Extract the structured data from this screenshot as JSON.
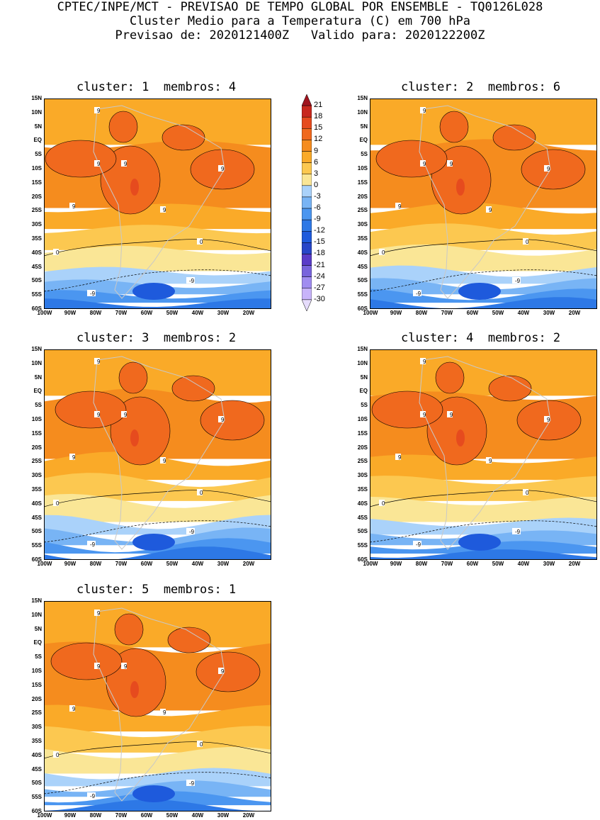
{
  "header": {
    "line1": "CPTEC/INPE/MCT - PREVISAO DE TEMPO GLOBAL POR ENSEMBLE - TQ0126L028",
    "line2": "Cluster Medio para a Temperatura (C) em 700 hPa",
    "line3": "Previsao de: 2020121400Z   Valido para: 2020122200Z"
  },
  "panels": [
    {
      "title": "cluster: 1  membros: 4",
      "labels": [
        "9",
        "9",
        "9",
        "9",
        "9",
        "9",
        "0",
        "0",
        "-9",
        "-9"
      ]
    },
    {
      "title": "cluster: 2  membros: 6",
      "labels": [
        "9",
        "9",
        "9",
        "9",
        "9",
        "9",
        "0",
        "0",
        "-9",
        "-9"
      ]
    },
    {
      "title": "cluster: 3  membros: 2",
      "labels": [
        "9",
        "9",
        "9",
        "9",
        "9",
        "9",
        "0",
        "0",
        "-9",
        "-9"
      ]
    },
    {
      "title": "cluster: 4  membros: 2",
      "labels": [
        "9",
        "9",
        "9",
        "9",
        "9",
        "9",
        "0",
        "0",
        "-9",
        "-9"
      ]
    },
    {
      "title": "cluster: 5  membros: 1",
      "labels": [
        "9",
        "9",
        "9",
        "9",
        "9",
        "9",
        "0",
        "0",
        "-9",
        "-9"
      ]
    }
  ],
  "axes": {
    "lat_labels": [
      "15N",
      "10N",
      "5N",
      "EQ",
      "5S",
      "10S",
      "15S",
      "20S",
      "25S",
      "30S",
      "35S",
      "40S",
      "45S",
      "50S",
      "55S",
      "60S"
    ],
    "lon_labels": [
      "100W",
      "90W",
      "80W",
      "70W",
      "60W",
      "50W",
      "40W",
      "30W",
      "20W"
    ]
  },
  "colorbar": {
    "levels": [
      "21",
      "18",
      "15",
      "12",
      "9",
      "6",
      "3",
      "0",
      "-3",
      "-6",
      "-9",
      "-12",
      "-15",
      "-18",
      "-21",
      "-24",
      "-27",
      "-30"
    ],
    "colors": [
      "#a0141e",
      "#c8281e",
      "#e64b1e",
      "#f0691e",
      "#f58c1e",
      "#faaa28",
      "#fcc850",
      "#fae696",
      "#aad2fa",
      "#78b4f5",
      "#4b96f0",
      "#2d78e6",
      "#1e5adc",
      "#2846c8",
      "#5a3cc8",
      "#7864dc",
      "#a08cf0",
      "#c8b4fa",
      "#e6dcfc"
    ]
  }
}
